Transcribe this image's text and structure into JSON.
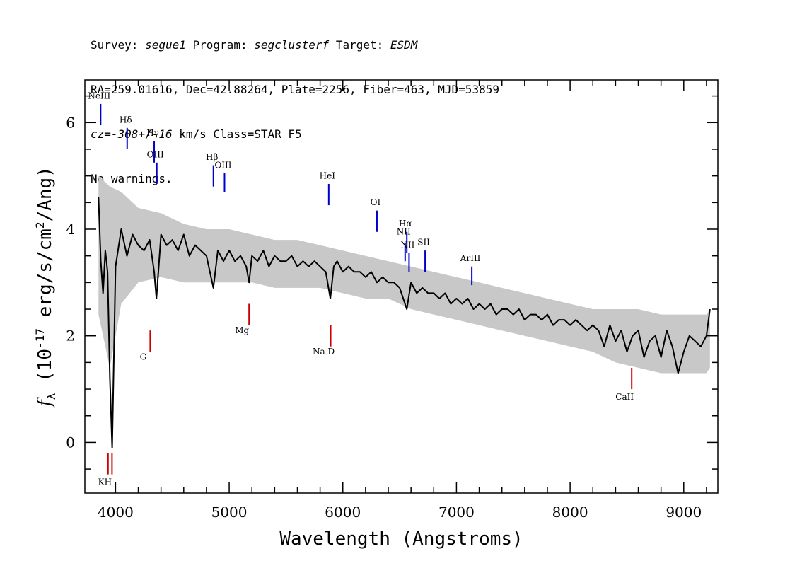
{
  "header": {
    "survey_label": "Survey:",
    "survey": "segue1",
    "program_label": "Program:",
    "program": "segclusterf",
    "target_label": "Target:",
    "target": "ESDM",
    "coords": "RA=259.01616, Dec=42.88264, Plate=2256, Fiber=463, MJD=53859",
    "cz_label": "cz=",
    "cz": "-308+/-16",
    "cz_units": "km/s Class=STAR F5",
    "warnings": "No warnings."
  },
  "chart_data": {
    "type": "line",
    "xlabel": "Wavelength (Angstroms)",
    "ylabel_prefix": "f",
    "ylabel_sub": "λ",
    "ylabel_text": " (10",
    "ylabel_exp": "-17",
    "ylabel_units": " erg/s/cm",
    "ylabel_units_exp": "2",
    "ylabel_end": "/Ang)",
    "xlim": [
      3730,
      9300
    ],
    "ylim": [
      -0.95,
      6.8
    ],
    "x_ticks": [
      4000,
      5000,
      6000,
      7000,
      8000,
      9000
    ],
    "y_ticks": [
      0,
      2,
      4,
      6
    ],
    "series": [
      {
        "color": "#000000",
        "x": [
          3850,
          3870,
          3890,
          3910,
          3930,
          3950,
          3970,
          4000,
          4050,
          4100,
          4150,
          4200,
          4250,
          4300,
          4340,
          4360,
          4400,
          4450,
          4500,
          4550,
          4600,
          4650,
          4700,
          4750,
          4800,
          4861,
          4900,
          4950,
          5000,
          5050,
          5100,
          5150,
          5175,
          5200,
          5250,
          5300,
          5350,
          5400,
          5450,
          5500,
          5550,
          5600,
          5650,
          5700,
          5750,
          5800,
          5850,
          5890,
          5920,
          5950,
          6000,
          6050,
          6100,
          6150,
          6200,
          6250,
          6300,
          6350,
          6400,
          6450,
          6500,
          6563,
          6600,
          6650,
          6700,
          6750,
          6800,
          6850,
          6900,
          6950,
          7000,
          7050,
          7100,
          7150,
          7200,
          7250,
          7300,
          7350,
          7400,
          7450,
          7500,
          7550,
          7600,
          7650,
          7700,
          7750,
          7800,
          7850,
          7900,
          7950,
          8000,
          8050,
          8100,
          8150,
          8200,
          8250,
          8300,
          8350,
          8400,
          8450,
          8500,
          8550,
          8600,
          8650,
          8700,
          8750,
          8800,
          8850,
          8900,
          8950,
          9000,
          9050,
          9100,
          9150,
          9200,
          9230
        ],
        "y": [
          4.6,
          3.4,
          2.8,
          3.6,
          3.2,
          1.2,
          -0.1,
          3.3,
          4.0,
          3.5,
          3.9,
          3.7,
          3.6,
          3.8,
          3.2,
          2.7,
          3.9,
          3.7,
          3.8,
          3.6,
          3.9,
          3.5,
          3.7,
          3.6,
          3.5,
          2.9,
          3.6,
          3.4,
          3.6,
          3.4,
          3.5,
          3.3,
          3.0,
          3.5,
          3.4,
          3.6,
          3.3,
          3.5,
          3.4,
          3.4,
          3.5,
          3.3,
          3.4,
          3.3,
          3.4,
          3.3,
          3.2,
          2.7,
          3.3,
          3.4,
          3.2,
          3.3,
          3.2,
          3.2,
          3.1,
          3.2,
          3.0,
          3.1,
          3.0,
          3.0,
          2.9,
          2.5,
          3.0,
          2.8,
          2.9,
          2.8,
          2.8,
          2.7,
          2.8,
          2.6,
          2.7,
          2.6,
          2.7,
          2.5,
          2.6,
          2.5,
          2.6,
          2.4,
          2.5,
          2.5,
          2.4,
          2.5,
          2.3,
          2.4,
          2.4,
          2.3,
          2.4,
          2.2,
          2.3,
          2.3,
          2.2,
          2.3,
          2.2,
          2.1,
          2.2,
          2.1,
          1.8,
          2.2,
          1.9,
          2.1,
          1.7,
          2.0,
          2.1,
          1.6,
          1.9,
          2.0,
          1.6,
          2.1,
          1.8,
          1.3,
          1.7,
          2.0,
          1.9,
          1.8,
          2.0,
          2.5
        ]
      }
    ],
    "error_band": {
      "color": "#c8c8c8",
      "x": [
        3850,
        3950,
        4050,
        4200,
        4400,
        4600,
        4800,
        5000,
        5200,
        5400,
        5600,
        5800,
        6000,
        6200,
        6400,
        6600,
        6800,
        7000,
        7200,
        7400,
        7600,
        7800,
        8000,
        8200,
        8400,
        8600,
        8800,
        9000,
        9200,
        9230
      ],
      "low": [
        2.4,
        1.4,
        2.6,
        3.0,
        3.1,
        3.0,
        3.0,
        3.0,
        3.0,
        2.9,
        2.9,
        2.9,
        2.8,
        2.7,
        2.7,
        2.5,
        2.4,
        2.3,
        2.2,
        2.1,
        2.0,
        1.9,
        1.8,
        1.7,
        1.5,
        1.4,
        1.3,
        1.3,
        1.3,
        1.4
      ],
      "high": [
        5.0,
        4.8,
        4.7,
        4.4,
        4.3,
        4.1,
        4.0,
        4.0,
        3.9,
        3.8,
        3.8,
        3.7,
        3.6,
        3.5,
        3.4,
        3.3,
        3.2,
        3.1,
        3.0,
        2.9,
        2.8,
        2.7,
        2.6,
        2.5,
        2.5,
        2.5,
        2.4,
        2.4,
        2.4,
        2.5
      ]
    },
    "emission_lines": [
      {
        "name": "NeIII",
        "wave": 3869,
        "label": "NeIII",
        "line_top": 6.35,
        "line_bottom": 5.95,
        "label_y": 6.45
      },
      {
        "name": "Hdelta",
        "wave": 4102,
        "label": "Hδ",
        "line_top": 5.9,
        "line_bottom": 5.5,
        "label_y": 6.0
      },
      {
        "name": "Hgamma",
        "wave": 4340,
        "label": "Hγ",
        "line_top": 5.65,
        "line_bottom": 5.25,
        "label_y": 5.75
      },
      {
        "name": "OIII-4363",
        "wave": 4363,
        "label": "OIII",
        "line_top": 5.25,
        "line_bottom": 4.85,
        "label_y": 5.35
      },
      {
        "name": "Hbeta",
        "wave": 4861,
        "label": "Hβ",
        "line_top": 5.2,
        "line_bottom": 4.8,
        "label_y": 5.3
      },
      {
        "name": "OIII-4959",
        "wave": 4959,
        "label": "OIII",
        "line_top": 5.05,
        "line_bottom": 4.7,
        "label_y": 5.15
      },
      {
        "name": "HeI",
        "wave": 5876,
        "label": "HeI",
        "line_top": 4.85,
        "line_bottom": 4.45,
        "label_y": 4.95
      },
      {
        "name": "OI",
        "wave": 6300,
        "label": "OI",
        "line_top": 4.35,
        "line_bottom": 3.95,
        "label_y": 4.45
      },
      {
        "name": "NII-6548",
        "wave": 6548,
        "label": "NII",
        "line_top": 3.75,
        "line_bottom": 3.4,
        "label_y": 3.9
      },
      {
        "name": "Halpha",
        "wave": 6563,
        "label": "Hα",
        "line_top": 3.95,
        "line_bottom": 3.55,
        "label_y": 4.05
      },
      {
        "name": "NII-6583",
        "wave": 6583,
        "label": "NII",
        "line_top": 3.55,
        "line_bottom": 3.2,
        "label_y": 3.65
      },
      {
        "name": "SII",
        "wave": 6724,
        "label": "SII",
        "line_top": 3.6,
        "line_bottom": 3.2,
        "label_y": 3.7
      },
      {
        "name": "ArIII",
        "wave": 7135,
        "label": "ArIII",
        "line_top": 3.3,
        "line_bottom": 2.95,
        "label_y": 3.4
      }
    ],
    "absorption_lines": [
      {
        "name": "K",
        "wave": 3934,
        "label": "",
        "line_top": -0.2,
        "line_bottom": -0.6
      },
      {
        "name": "H",
        "wave": 3969,
        "label": "KH",
        "line_top": -0.2,
        "line_bottom": -0.6,
        "label_y": -0.8
      },
      {
        "name": "G",
        "wave": 4305,
        "label": "G",
        "line_top": 2.1,
        "line_bottom": 1.7,
        "label_y": 1.55
      },
      {
        "name": "Mg",
        "wave": 5175,
        "label": "Mg",
        "line_top": 2.6,
        "line_bottom": 2.2,
        "label_y": 2.05
      },
      {
        "name": "NaD",
        "wave": 5893,
        "label": "Na D",
        "line_top": 2.2,
        "line_bottom": 1.8,
        "label_y": 1.65
      },
      {
        "name": "CaII",
        "wave": 8542,
        "label": "CaII",
        "line_top": 1.4,
        "line_bottom": 1.0,
        "label_y": 0.8
      }
    ],
    "colors": {
      "flux": "#000000",
      "error": "#c8c8c8",
      "emission": "#0000cc",
      "absorption": "#cc0000"
    }
  }
}
